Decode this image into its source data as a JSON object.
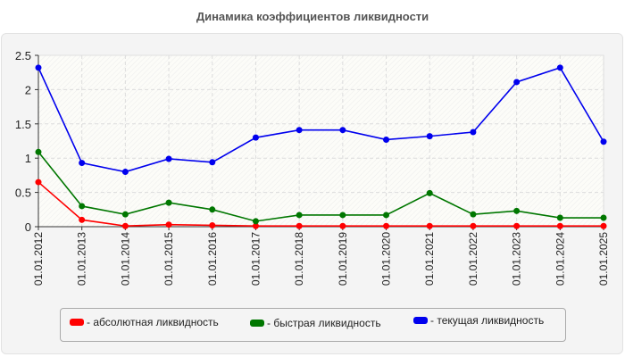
{
  "title": "Динамика коэффициентов ликвидности",
  "chart_data": {
    "type": "line",
    "title": "Динамика коэффициентов ликвидности",
    "xlabel": "",
    "ylabel": "",
    "ylim": [
      0,
      2.5
    ],
    "yticks": [
      "0",
      "0.5",
      "1",
      "1.5",
      "2",
      "2.5"
    ],
    "grid": true,
    "legend_position": "bottom",
    "categories": [
      "01.01.2012",
      "01.01.2013",
      "01.01.2014",
      "01.01.2015",
      "01.01.2016",
      "01.01.2017",
      "01.01.2018",
      "01.01.2019",
      "01.01.2020",
      "01.01.2021",
      "01.01.2022",
      "01.01.2023",
      "01.01.2024",
      "01.01.2025"
    ],
    "series": [
      {
        "name": "- абсолютная ликвидность",
        "color": "#ff0000",
        "values": [
          0.65,
          0.1,
          0.01,
          0.03,
          0.02,
          0.01,
          0.01,
          0.01,
          0.01,
          0.01,
          0.01,
          0.01,
          0.01,
          0.01
        ]
      },
      {
        "name": "- быстрая ликвидность",
        "color": "#007700",
        "values": [
          1.09,
          0.3,
          0.18,
          0.35,
          0.25,
          0.08,
          0.17,
          0.17,
          0.17,
          0.49,
          0.18,
          0.23,
          0.13,
          0.13
        ]
      },
      {
        "name": "- текущая ликвидность",
        "color": "#0000ee",
        "values": [
          2.32,
          0.93,
          0.8,
          0.99,
          0.94,
          1.3,
          1.41,
          1.41,
          1.27,
          1.32,
          1.38,
          2.11,
          2.32,
          1.24
        ]
      }
    ]
  }
}
